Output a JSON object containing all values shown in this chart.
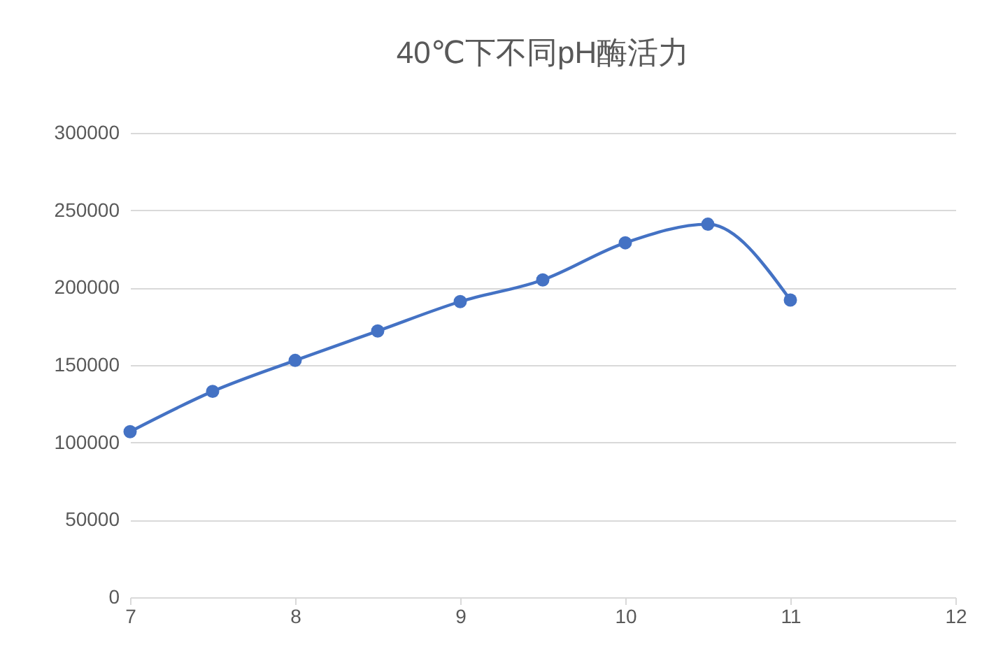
{
  "chart_data": {
    "type": "line",
    "title": "40℃下不同pH酶活力",
    "x": [
      7,
      7.5,
      8,
      8.5,
      9,
      9.5,
      10,
      10.5,
      11
    ],
    "series": [
      {
        "color": "#4472c4",
        "values": [
          107000,
          133000,
          153000,
          172000,
          191000,
          205000,
          229000,
          241000,
          192000
        ]
      }
    ],
    "xlim": [
      7,
      12
    ],
    "xticks": [
      7,
      8,
      9,
      10,
      11,
      12
    ],
    "ylim": [
      0,
      300000
    ],
    "yticks": [
      0,
      50000,
      100000,
      150000,
      200000,
      250000,
      300000
    ],
    "grid": "y",
    "marker": "circle",
    "line_style": "solid",
    "legend": false
  }
}
